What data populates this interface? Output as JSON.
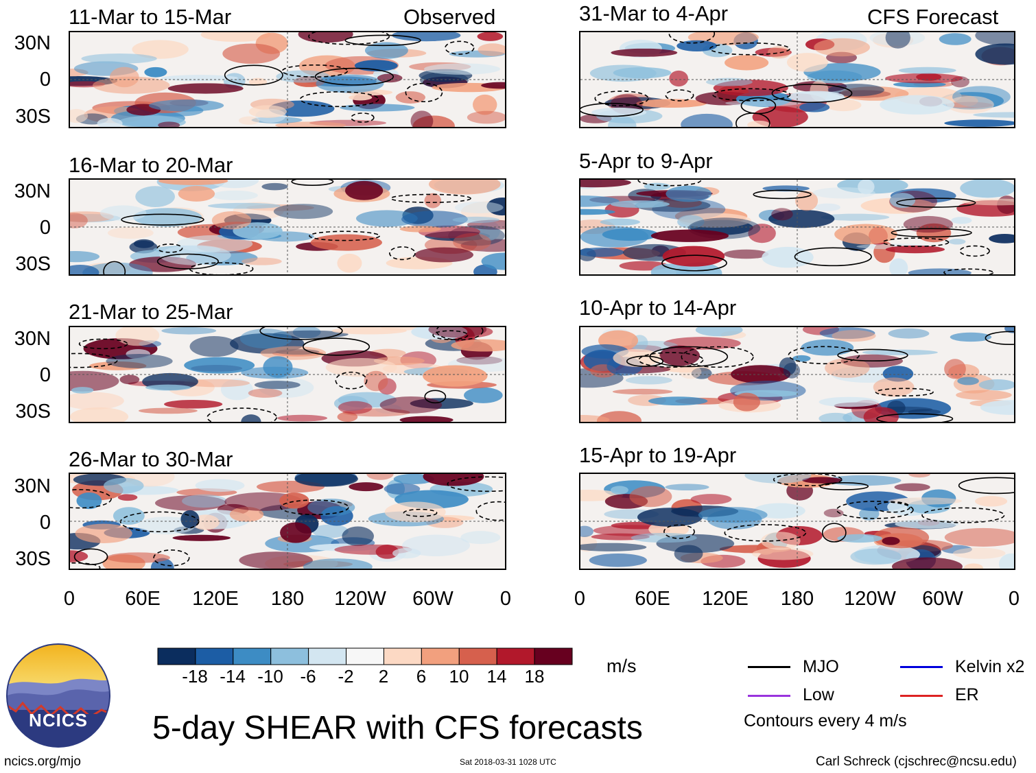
{
  "left_column": {
    "label": "Observed",
    "panels": [
      {
        "title": "11-Mar to 15-Mar"
      },
      {
        "title": "16-Mar to 20-Mar"
      },
      {
        "title": "21-Mar to 25-Mar"
      },
      {
        "title": "26-Mar to 30-Mar"
      }
    ]
  },
  "right_column": {
    "label": "CFS Forecast",
    "panels": [
      {
        "title": "31-Mar to 4-Apr"
      },
      {
        "title": "5-Apr to 9-Apr"
      },
      {
        "title": "10-Apr to 14-Apr"
      },
      {
        "title": "15-Apr to 19-Apr"
      }
    ]
  },
  "lat_labels": [
    "30N",
    "0",
    "30S"
  ],
  "lon_labels": [
    "0",
    "60E",
    "120E",
    "180",
    "120W",
    "60W",
    "0"
  ],
  "colorbar": {
    "units": "m/s",
    "ticks": [
      "-18",
      "-14",
      "-10",
      "-6",
      "-2",
      "2",
      "6",
      "10",
      "14",
      "18"
    ],
    "colors": [
      "#0b2d5e",
      "#1c5da5",
      "#3d8cc4",
      "#8dbfdd",
      "#d3e6f1",
      "#f7f7f7",
      "#fcd9c4",
      "#f2a07e",
      "#d6604d",
      "#b2182b",
      "#67001f"
    ]
  },
  "legend": {
    "items": [
      {
        "label": "MJO",
        "color": "#000000"
      },
      {
        "label": "Kelvin x2",
        "color": "#0000dd"
      },
      {
        "label": "Low",
        "color": "#9933dd"
      },
      {
        "label": "ER",
        "color": "#dd2222"
      }
    ],
    "note": "Contours every 4 m/s"
  },
  "logo": {
    "text": "NCICS"
  },
  "main_title": "5-day SHEAR with CFS forecasts",
  "footer": {
    "left": "ncics.org/mjo",
    "center": "Sat 2018-03-31 1028 UTC",
    "right": "Carl Schreck (cjschrec@ncsu.edu)"
  }
}
